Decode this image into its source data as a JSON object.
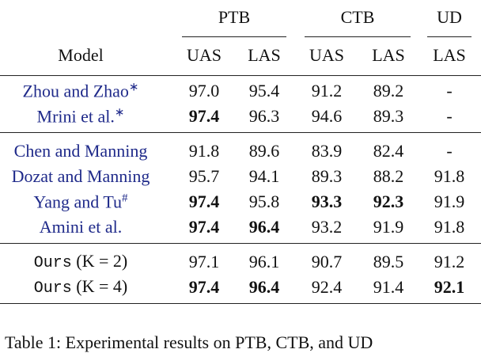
{
  "table": {
    "groups": [
      "PTB",
      "CTB",
      "UD"
    ],
    "model_header": "Model",
    "columns": [
      "UAS",
      "LAS",
      "UAS",
      "LAS",
      "LAS"
    ],
    "sections": [
      [
        {
          "model": {
            "name": "Zhou and Zhao",
            "sup": "∗",
            "cited": true
          },
          "cells": [
            {
              "text": "97.0"
            },
            {
              "text": "95.4"
            },
            {
              "text": "91.2"
            },
            {
              "text": "89.2"
            },
            {
              "text": "-"
            }
          ]
        },
        {
          "model": {
            "name": "Mrini et al.",
            "sup": "∗",
            "cited": true
          },
          "cells": [
            {
              "text": "97.4",
              "bold": true
            },
            {
              "text": "96.3"
            },
            {
              "text": "94.6"
            },
            {
              "text": "89.3"
            },
            {
              "text": "-"
            }
          ]
        }
      ],
      [
        {
          "model": {
            "name": "Chen and Manning",
            "cited": true
          },
          "cells": [
            {
              "text": "91.8"
            },
            {
              "text": "89.6"
            },
            {
              "text": "83.9"
            },
            {
              "text": "82.4"
            },
            {
              "text": "-"
            }
          ]
        },
        {
          "model": {
            "name": "Dozat and Manning",
            "cited": true
          },
          "cells": [
            {
              "text": "95.7"
            },
            {
              "text": "94.1"
            },
            {
              "text": "89.3"
            },
            {
              "text": "88.2"
            },
            {
              "text": "91.8"
            }
          ]
        },
        {
          "model": {
            "name": "Yang and Tu",
            "sup": "#",
            "cited": true
          },
          "cells": [
            {
              "text": "97.4",
              "bold": true
            },
            {
              "text": "95.8"
            },
            {
              "text": "93.3",
              "bold": true
            },
            {
              "text": "92.3",
              "bold": true
            },
            {
              "text": "91.9"
            }
          ]
        },
        {
          "model": {
            "name": "Amini et al.",
            "cited": true
          },
          "cells": [
            {
              "text": "97.4",
              "bold": true
            },
            {
              "text": "96.4",
              "bold": true
            },
            {
              "text": "93.2"
            },
            {
              "text": "91.9"
            },
            {
              "text": "91.8"
            }
          ]
        }
      ],
      [
        {
          "model": {
            "name": "Ours",
            "math": "(K = 2)",
            "mono": true
          },
          "cells": [
            {
              "text": "97.1"
            },
            {
              "text": "96.1"
            },
            {
              "text": "90.7"
            },
            {
              "text": "89.5"
            },
            {
              "text": "91.2"
            }
          ]
        },
        {
          "model": {
            "name": "Ours",
            "math": "(K = 4)",
            "mono": true
          },
          "cells": [
            {
              "text": "97.4",
              "bold": true
            },
            {
              "text": "96.4",
              "bold": true
            },
            {
              "text": "92.4"
            },
            {
              "text": "91.4"
            },
            {
              "text": "92.1",
              "bold": true
            }
          ]
        }
      ]
    ],
    "caption": "Table 1: Experimental results on PTB, CTB, and UD"
  }
}
